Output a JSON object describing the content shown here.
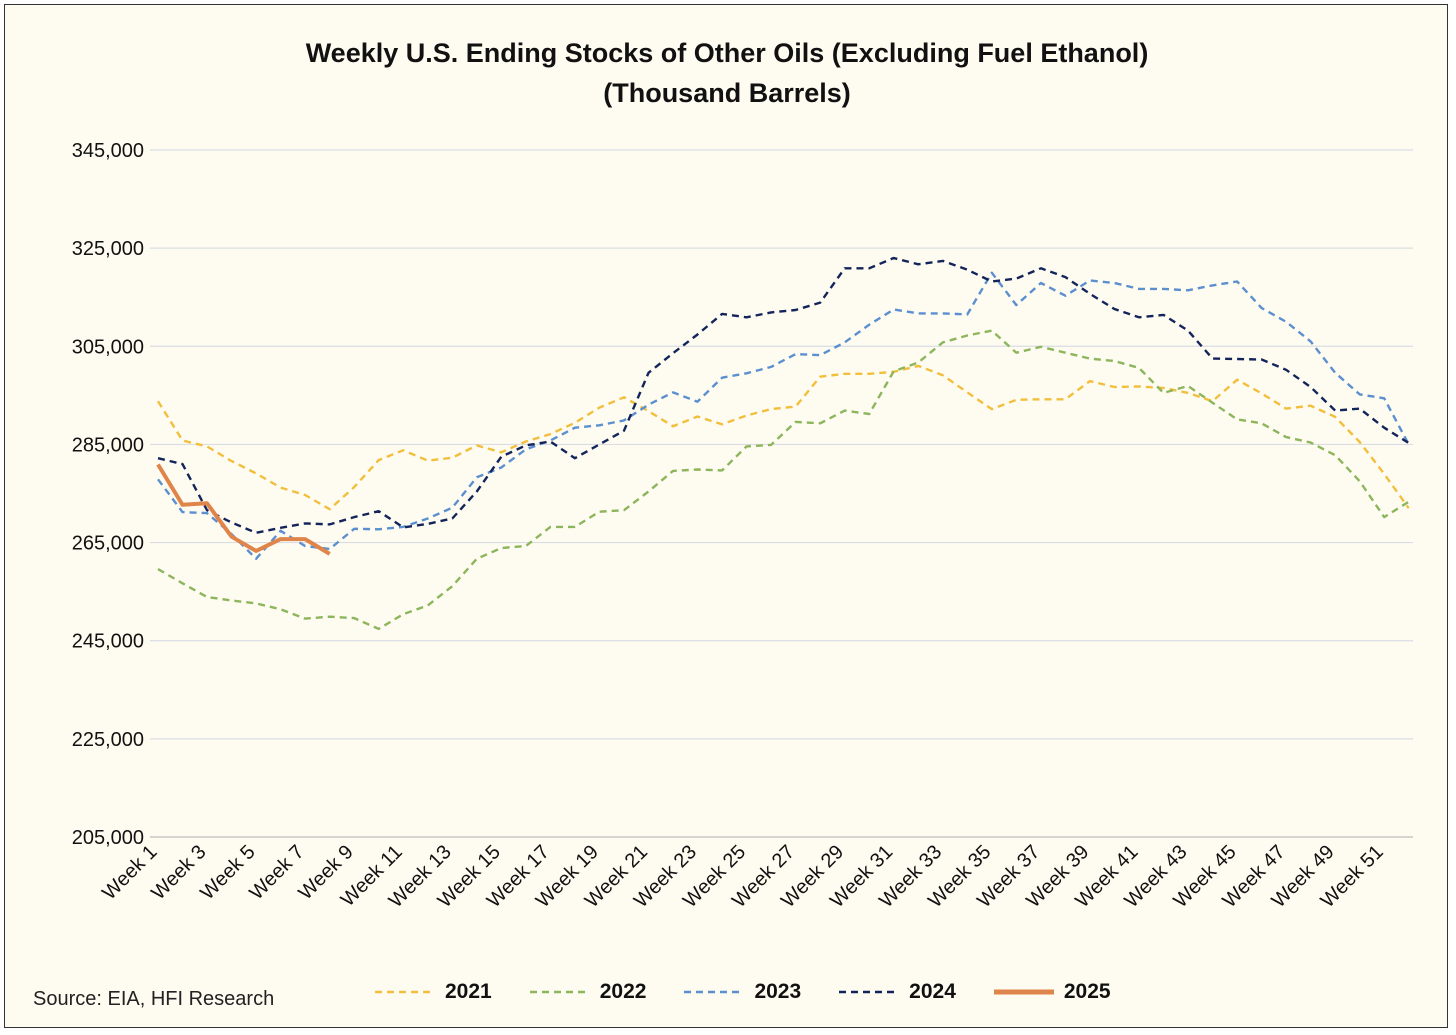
{
  "chart_data": {
    "type": "line",
    "title": "Weekly U.S. Ending Stocks of Other Oils (Excluding Fuel Ethanol)",
    "subtitle": "(Thousand Barrels)",
    "source": "Source: EIA, HFI Research",
    "ylim": [
      205000,
      345000
    ],
    "yticks": [
      "345,000",
      "325,000",
      "305,000",
      "285,000",
      "265,000",
      "245,000",
      "225,000",
      "205,000"
    ],
    "ytick_values": [
      345000,
      325000,
      305000,
      285000,
      265000,
      245000,
      225000,
      205000
    ],
    "xticks": [
      "Week 1",
      "Week 3",
      "Week 5",
      "Week 7",
      "Week 9",
      "Week 11",
      "Week 13",
      "Week 15",
      "Week 17",
      "Week 19",
      "Week 21",
      "Week 23",
      "Week 25",
      "Week 27",
      "Week 29",
      "Week 31",
      "Week 33",
      "Week 35",
      "Week 37",
      "Week 39",
      "Week 41",
      "Week 43",
      "Week 45",
      "Week 47",
      "Week 49",
      "Week 51"
    ],
    "grid": "horizontal",
    "legend_position": "bottom",
    "x_weeks": [
      1,
      2,
      3,
      4,
      5,
      6,
      7,
      8,
      9,
      10,
      11,
      12,
      13,
      14,
      15,
      16,
      17,
      18,
      19,
      20,
      21,
      22,
      23,
      24,
      25,
      26,
      27,
      28,
      29,
      30,
      31,
      32,
      33,
      34,
      35,
      36,
      37,
      38,
      39,
      40,
      41,
      42,
      43,
      44,
      45,
      46,
      47,
      48,
      49,
      50,
      51,
      52
    ],
    "series": [
      {
        "name": "2021",
        "color": "#f2bf3d",
        "style": "dashed",
        "values": [
          293800,
          285800,
          284600,
          281600,
          279100,
          276200,
          274700,
          271800,
          276300,
          281800,
          283800,
          281700,
          282300,
          284800,
          283400,
          285600,
          287100,
          289400,
          292500,
          294600,
          291800,
          288700,
          290700,
          289100,
          290900,
          292200,
          292700,
          298800,
          299400,
          299400,
          299800,
          301000,
          299100,
          295600,
          292200,
          294100,
          294200,
          294200,
          297900,
          296700,
          296800,
          296500,
          295500,
          293800,
          298200,
          295400,
          292300,
          292900,
          290600,
          285500,
          279000,
          272000
        ]
      },
      {
        "name": "2022",
        "color": "#8db55c",
        "style": "dashed",
        "values": [
          259600,
          256700,
          253900,
          253200,
          252600,
          251400,
          249500,
          249900,
          249600,
          247400,
          250400,
          252200,
          256100,
          261700,
          263900,
          264300,
          268200,
          268200,
          271300,
          271600,
          275400,
          279600,
          279900,
          279700,
          284600,
          284900,
          289600,
          289300,
          291900,
          291200,
          299900,
          301700,
          305800,
          307200,
          308200,
          303700,
          304900,
          303700,
          302500,
          302000,
          300600,
          295500,
          296900,
          293500,
          290100,
          289300,
          286500,
          285400,
          282800,
          277500,
          270200,
          273300
        ]
      },
      {
        "name": "2023",
        "color": "#5b8fcf",
        "style": "dashed",
        "values": [
          277900,
          271200,
          271000,
          266700,
          261700,
          267400,
          264300,
          263700,
          267800,
          267700,
          268200,
          269900,
          272100,
          278300,
          280300,
          284000,
          285800,
          288400,
          288900,
          289900,
          293100,
          295600,
          293700,
          298600,
          299500,
          300800,
          303400,
          303200,
          305800,
          309400,
          312500,
          311700,
          311700,
          311500,
          320000,
          313400,
          317900,
          315300,
          318400,
          317900,
          316700,
          316700,
          316400,
          317400,
          318200,
          312800,
          310000,
          306000,
          299600,
          295200,
          294400,
          285000
        ]
      },
      {
        "name": "2024",
        "color": "#13245a",
        "style": "dashed",
        "values": [
          282200,
          281000,
          271600,
          269100,
          267000,
          268000,
          268900,
          268700,
          270200,
          271400,
          268100,
          268800,
          269900,
          275400,
          282500,
          284800,
          285600,
          282200,
          285000,
          287800,
          299600,
          303600,
          307400,
          311600,
          310900,
          311900,
          312400,
          313900,
          320900,
          320900,
          323000,
          321700,
          322400,
          320600,
          318200,
          318800,
          320900,
          319100,
          315700,
          312600,
          310900,
          311400,
          308200,
          302500,
          302400,
          302300,
          300200,
          296700,
          291900,
          292300,
          288400,
          285300
        ]
      },
      {
        "name": "2025",
        "color": "#e0854a",
        "style": "solid",
        "values": [
          280900,
          272700,
          273000,
          266200,
          263300,
          265700,
          265700,
          262700
        ]
      }
    ]
  }
}
